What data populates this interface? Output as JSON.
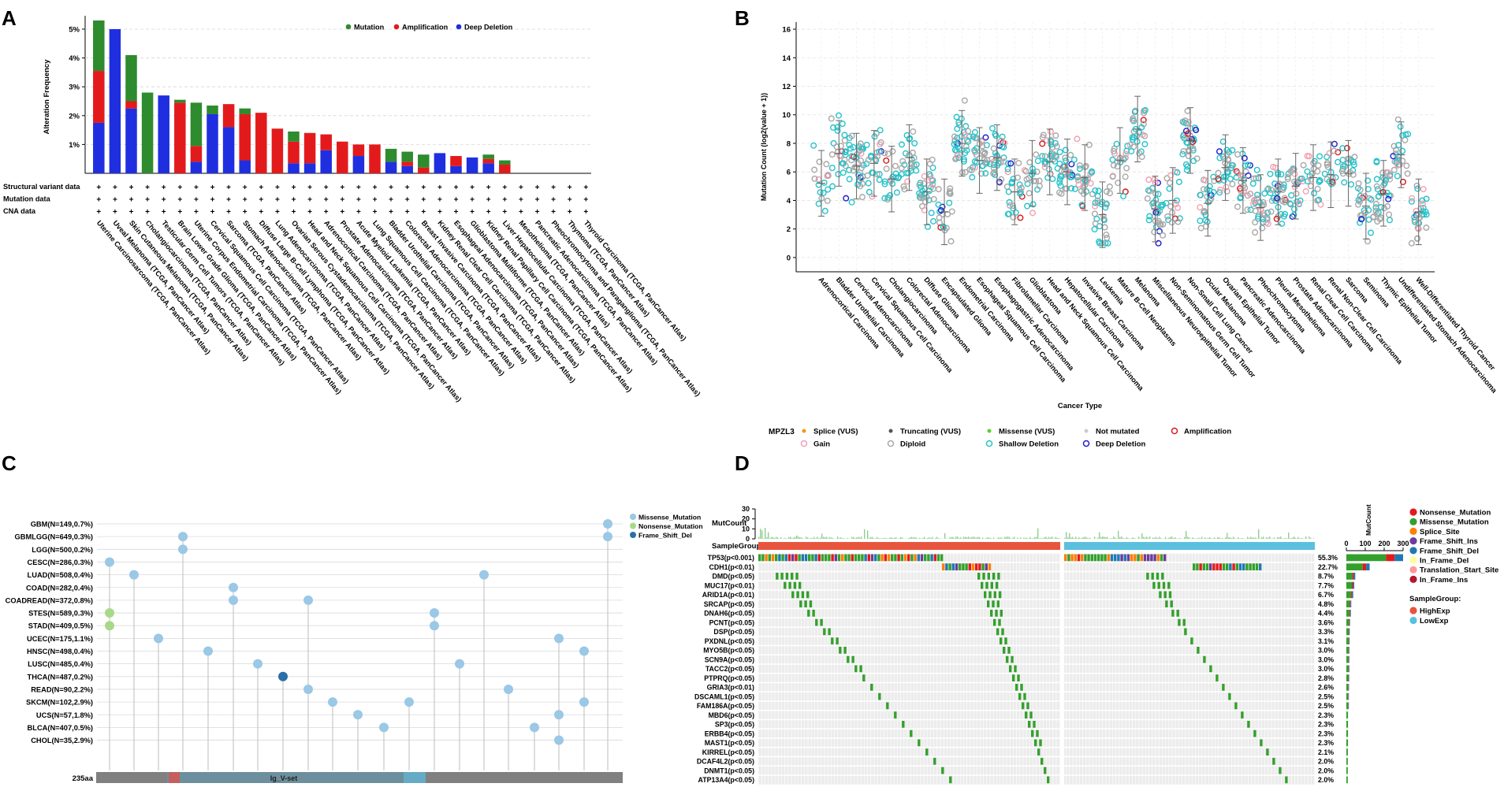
{
  "panel_labels": [
    "A",
    "B",
    "C",
    "D"
  ],
  "chart_data": [
    {
      "panel": "A",
      "type": "bar",
      "ylabel": "Alteration Frequency",
      "ylim": [
        0,
        5.3
      ],
      "yticks": [
        1,
        2,
        3,
        4,
        5
      ],
      "ytick_labels": [
        "1%",
        "2%",
        "3%",
        "4%",
        "5%"
      ],
      "legend": [
        "Mutation",
        "Amplification",
        "Deep Deletion"
      ],
      "colors": {
        "Mutation": "#2e8b2e",
        "Amplification": "#e31a1c",
        "Deep Deletion": "#1f2fe0"
      },
      "row_labels": [
        "Structural variant data",
        "Mutation data",
        "CNA data"
      ],
      "row_mark": "+",
      "categories": [
        "Uterine Carcinosarcoma (TCGA, PanCancer Atlas)",
        "Uveal Melanoma (TCGA, PanCancer Atlas)",
        "Skin Cutaneous Melanoma (TCGA, PanCancer Atlas)",
        "Cholangiocarcinoma (TCGA, PanCancer Atlas)",
        "Testicular Germ Cell Tumors (TCGA, PanCancer Atlas)",
        "Brain Lower Grade Glioma (TCGA, PanCancer Atlas)",
        "Uterine Corpus Endometrial Carcinoma (TCGA, PanCancer Atlas)",
        "Cervical Squamous Cell Carcinoma (TCGA, PanCancer Atlas)",
        "Sarcoma (TCGA, PanCancer Atlas)",
        "Stomach Adenocarcinoma (TCGA, PanCancer Atlas)",
        "Diffuse Large B-Cell Lymphoma (TCGA, PanCancer Atlas)",
        "Lung Adenocarcinoma (TCGA, PanCancer Atlas)",
        "Ovarian Serous Cystadenocarcinoma (TCGA, PanCancer Atlas)",
        "Head and Neck Squamous Cell Carcinoma (TCGA, PanCancer Atlas)",
        "Adrenocortical Carcinoma (TCGA, PanCancer Atlas)",
        "Prostate Adenocarcinoma (TCGA, PanCancer Atlas)",
        "Acute Myeloid Leukemia (TCGA, PanCancer Atlas)",
        "Lung Squamous Cell Carcinoma (TCGA, PanCancer Atlas)",
        "Bladder Urothelial Carcinoma (TCGA, PanCancer Atlas)",
        "Colorectal Adenocarcinoma (TCGA, PanCancer Atlas)",
        "Breast Invasive Carcinoma (TCGA, PanCancer Atlas)",
        "Kidney Renal Clear Cell Carcinoma (TCGA, PanCancer Atlas)",
        "Esophageal Adenocarcinoma (TCGA, PanCancer Atlas)",
        "Glioblastoma Multiforme (TCGA, PanCancer Atlas)",
        "Kidney Renal Papillary Cell Carcinoma (TCGA, PanCancer Atlas)",
        "Liver Hepatocellular Carcinoma (TCGA, PanCancer Atlas)",
        "Mesothelioma (TCGA, PanCancer Atlas)",
        "Pancreatic Adenocarcinoma (TCGA, PanCancer Atlas)",
        "Pheochromocytoma and Paraganglioma (TCGA, PanCancer Atlas)",
        "Thymoma (TCGA, PanCancer Atlas)",
        "Thyroid Carcinoma (TCGA, PanCancer Atlas)"
      ],
      "series": [
        {
          "name": "Deep Deletion",
          "values": [
            1.75,
            5.0,
            2.25,
            0,
            2.7,
            0,
            0.4,
            2.05,
            1.6,
            0.45,
            0,
            0,
            0.35,
            0.35,
            0.8,
            0,
            0.6,
            0,
            0.4,
            0.25,
            0,
            0.7,
            0.25,
            0.55,
            0.35,
            0,
            0,
            0,
            0,
            0,
            0
          ]
        },
        {
          "name": "Amplification",
          "values": [
            1.8,
            0,
            0.25,
            0,
            0,
            2.45,
            0.55,
            0,
            0.8,
            1.6,
            2.1,
            1.55,
            0.75,
            1.05,
            0.55,
            1.1,
            0.4,
            1.0,
            0,
            0.15,
            0.2,
            0,
            0.35,
            0,
            0.15,
            0.3,
            0,
            0,
            0,
            0,
            0
          ]
        },
        {
          "name": "Mutation",
          "values": [
            1.75,
            0,
            1.6,
            2.8,
            0,
            0.1,
            1.5,
            0.3,
            0,
            0.2,
            0,
            0,
            0.35,
            0,
            0,
            0,
            0,
            0,
            0.45,
            0.35,
            0.45,
            0,
            0,
            0,
            0.15,
            0.15,
            0,
            0,
            0,
            0,
            0
          ]
        }
      ]
    },
    {
      "panel": "B",
      "type": "scatter",
      "ylabel": "Mutation Count (log2(value + 1))",
      "xlabel": "Cancer Type",
      "ylim": [
        -1,
        16.5
      ],
      "yticks": [
        0,
        2,
        4,
        6,
        8,
        10,
        12,
        14,
        16
      ],
      "categories": [
        "Adrenocortical Carcinoma",
        "Bladder Urothelial Carcinoma",
        "Cervical Adenocarcinoma",
        "Cervical Squamous Cell Carcinoma",
        "Cholangiocarcinoma",
        "Colorectal Adenocarcinoma",
        "Diffuse Glioma",
        "Encapsulated Glioma",
        "Endometrial Carcinoma",
        "Esophageal Squamous Cell Carcinoma",
        "Esophagogastric Adenocarcinoma",
        "Fibrolamellar Carcinoma",
        "Glioblastoma",
        "Head and Neck Squamous Cell Carcinoma",
        "Hepatocellular Carcinoma",
        "Invasive Breast Carcinoma",
        "Leukemia",
        "Mature B-Cell Neoplasms",
        "Melanoma",
        "Miscellaneous Neuroepithelial Tumor",
        "Non-Seminomatous Germ Cell Tumor",
        "Non-Small Cell Lung Cancer",
        "Ocular Melanoma",
        "Ovarian Epithelial Tumor",
        "Pancreatic Adenocarcinoma",
        "Pheochromocytoma",
        "Pleural Mesothelioma",
        "Prostate Adenocarcinoma",
        "Renal Clear Cell Carcinoma",
        "Renal Non-Clear Cell Carcinoma",
        "Sarcoma",
        "Seminoma",
        "Thymic Epithelial Tumor",
        "Undifferentiated Stomach Adenocarcinoma",
        "Well-Differentiated Thyroid Cancer"
      ],
      "medians": [
        5.2,
        7.3,
        6.4,
        6.6,
        5.5,
        7.0,
        4.6,
        3.2,
        8.0,
        6.8,
        7.0,
        4.6,
        5.9,
        6.7,
        6.0,
        5.6,
        3.0,
        6.8,
        9.0,
        3.4,
        4.0,
        8.2,
        3.8,
        6.3,
        5.4,
        3.5,
        4.6,
        5.0,
        5.6,
        5.8,
        5.9,
        3.6,
        4.5,
        7.2,
        3.2
      ],
      "gene": "MPZL3",
      "legend": [
        "Splice (VUS)",
        "Truncating (VUS)",
        "Missense (VUS)",
        "Not mutated",
        "Amplification",
        "Gain",
        "Diploid",
        "Shallow Deletion",
        "Deep Deletion"
      ]
    },
    {
      "panel": "C",
      "type": "lollipop",
      "protein_length_label": "235aa",
      "domain_label": "Ig_V-set",
      "rows": [
        "GBM(N=149,0.7%)",
        "GBMLGG(N=649,0.3%)",
        "LGG(N=500,0.2%)",
        "CESC(N=286,0.3%)",
        "LUAD(N=508,0.4%)",
        "COAD(N=282,0.4%)",
        "COADREAD(N=372,0.8%)",
        "STES(N=589,0.3%)",
        "STAD(N=409,0.5%)",
        "UCEC(N=175,1.1%)",
        "HNSC(N=498,0.4%)",
        "LUSC(N=485,0.4%)",
        "THCA(N=487,0.2%)",
        "READ(N=90,2.2%)",
        "SKCM(N=102,2.9%)",
        "UCS(N=57,1.8%)",
        "BLCA(N=407,0.5%)",
        "CHOL(N=35,2.9%)"
      ],
      "legend": [
        "Missense_Mutation",
        "Nonsense_Mutation",
        "Frame_Shift_Del"
      ]
    },
    {
      "panel": "D",
      "type": "oncoprint",
      "mutcount_label": "MutCount",
      "mutcount_ticks": [
        "0",
        "10",
        "20",
        "30"
      ],
      "samplegroup_label": "SampleGroup",
      "genes": [
        "TP53(p<0.001)",
        "CDH1(p<0.01)",
        "DMD(p<0.05)",
        "MUC17(p<0.01)",
        "ARID1A(p<0.01)",
        "SRCAP(p<0.05)",
        "DNAH6(p<0.05)",
        "PCNT(p<0.05)",
        "DSP(p<0.05)",
        "PXDNL(p<0.05)",
        "MYO5B(p<0.05)",
        "SCN9A(p<0.05)",
        "TACC2(p<0.05)",
        "PTPRQ(p<0.05)",
        "GRIA3(p<0.01)",
        "DSCAML1(p<0.05)",
        "FAM186A(p<0.05)",
        "MBD6(p<0.05)",
        "SP3(p<0.05)",
        "ERBB4(p<0.05)",
        "MAST1(p<0.05)",
        "KIRREL(p<0.05)",
        "DCAF4L2(p<0.05)",
        "DNMT1(p<0.05)",
        "ATP13A4(p<0.05)"
      ],
      "percentages": [
        "55.3%",
        "22.7%",
        "8.7%",
        "7.7%",
        "6.7%",
        "4.8%",
        "4.4%",
        "3.6%",
        "3.3%",
        "3.1%",
        "3.0%",
        "3.0%",
        "3.0%",
        "2.8%",
        "2.6%",
        "2.5%",
        "2.5%",
        "2.3%",
        "2.3%",
        "2.3%",
        "2.3%",
        "2.1%",
        "2.0%",
        "2.0%",
        "2.0%"
      ],
      "percent_values": [
        55.3,
        22.7,
        8.7,
        7.7,
        6.7,
        4.8,
        4.4,
        3.6,
        3.3,
        3.1,
        3.0,
        3.0,
        3.0,
        2.8,
        2.6,
        2.5,
        2.5,
        2.3,
        2.3,
        2.3,
        2.3,
        2.1,
        2.0,
        2.0,
        2.0
      ],
      "side_axis_label": "MutCount",
      "side_axis_ticks": [
        "0",
        "100",
        "200",
        "300"
      ],
      "legend_variants": [
        "Nonsense_Mutation",
        "Missense_Mutation",
        "Splice_Site",
        "Frame_Shift_Ins",
        "Frame_Shift_Del",
        "In_Frame_Del",
        "Translation_Start_Site",
        "In_Frame_Ins"
      ],
      "legend_variant_colors": [
        "#e31a1c",
        "#33a02c",
        "#ff7f00",
        "#6a3d9a",
        "#1f78b4",
        "#ffff99",
        "#fb9a99",
        "#b2182b"
      ],
      "legend_group_title": "SampleGroup:",
      "legend_groups": [
        "HighExp",
        "LowExp"
      ],
      "legend_group_colors": [
        "#e8553f",
        "#5bc0de"
      ]
    }
  ]
}
